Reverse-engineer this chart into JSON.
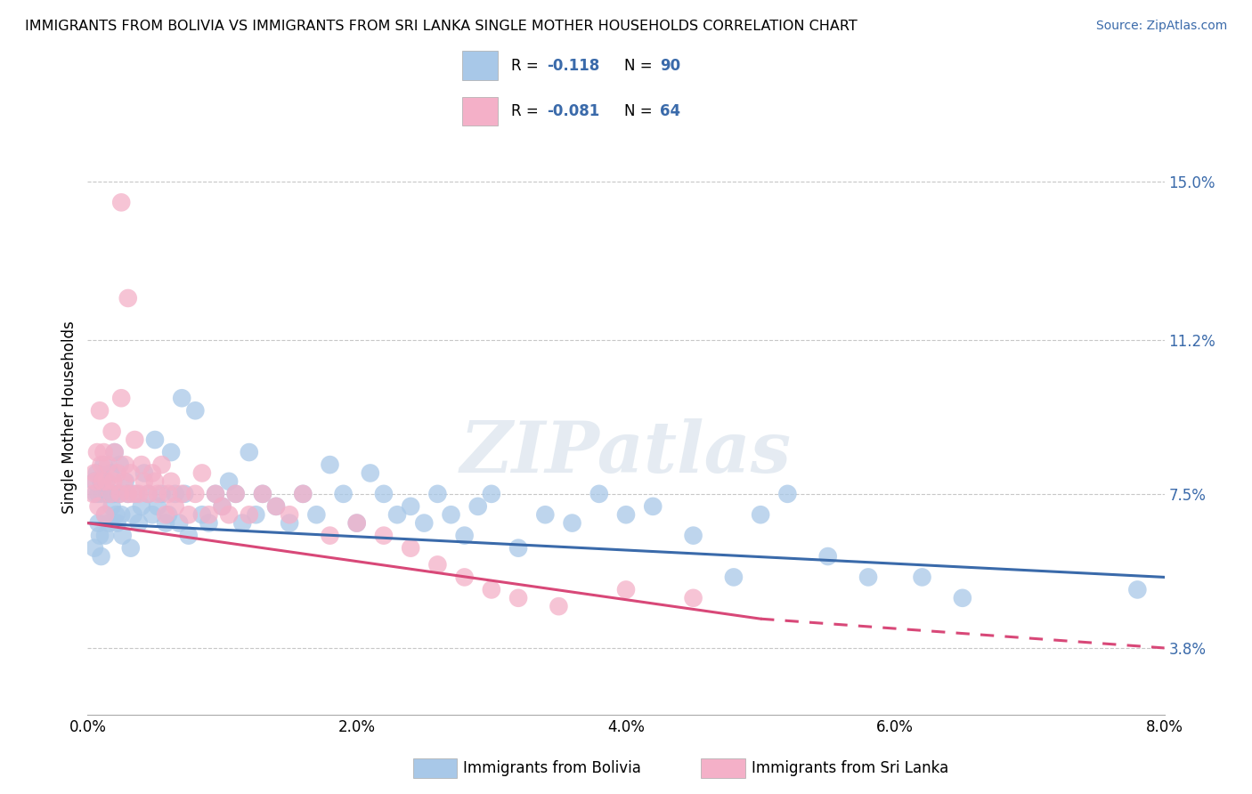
{
  "title": "IMMIGRANTS FROM BOLIVIA VS IMMIGRANTS FROM SRI LANKA SINGLE MOTHER HOUSEHOLDS CORRELATION CHART",
  "source_text": "Source: ZipAtlas.com",
  "ylabel": "Single Mother Households",
  "xlabel_vals": [
    0.0,
    2.0,
    4.0,
    6.0,
    8.0
  ],
  "ylabel_vals": [
    3.8,
    7.5,
    11.2,
    15.0
  ],
  "xlim": [
    0.0,
    8.0
  ],
  "ylim": [
    2.2,
    16.5
  ],
  "bolivia_color": "#a8c8e8",
  "srilanka_color": "#f4b0c8",
  "bolivia_line_color": "#3a6aaa",
  "srilanka_line_color": "#d84878",
  "bolivia_label": "Immigrants from Bolivia",
  "srilanka_label": "Immigrants from Sri Lanka",
  "bolivia_R": "-0.118",
  "bolivia_N": "90",
  "srilanka_R": "-0.081",
  "srilanka_N": "64",
  "watermark": "ZIPatlas",
  "background_color": "#ffffff",
  "grid_color": "#c8c8c8",
  "bolivia_x": [
    0.05,
    0.05,
    0.06,
    0.07,
    0.08,
    0.08,
    0.09,
    0.1,
    0.1,
    0.11,
    0.12,
    0.13,
    0.13,
    0.14,
    0.15,
    0.16,
    0.17,
    0.18,
    0.19,
    0.2,
    0.21,
    0.22,
    0.23,
    0.24,
    0.25,
    0.26,
    0.28,
    0.3,
    0.32,
    0.34,
    0.36,
    0.38,
    0.4,
    0.42,
    0.45,
    0.48,
    0.5,
    0.52,
    0.55,
    0.58,
    0.6,
    0.62,
    0.65,
    0.68,
    0.7,
    0.72,
    0.75,
    0.8,
    0.85,
    0.9,
    0.95,
    1.0,
    1.05,
    1.1,
    1.15,
    1.2,
    1.25,
    1.3,
    1.4,
    1.5,
    1.6,
    1.7,
    1.8,
    1.9,
    2.0,
    2.1,
    2.2,
    2.3,
    2.4,
    2.5,
    2.6,
    2.7,
    2.8,
    2.9,
    3.0,
    3.2,
    3.4,
    3.6,
    3.8,
    4.0,
    4.2,
    4.5,
    4.8,
    5.0,
    5.2,
    5.5,
    5.8,
    6.2,
    6.5,
    7.8
  ],
  "bolivia_y": [
    7.8,
    6.2,
    7.5,
    8.0,
    6.8,
    7.5,
    6.5,
    7.8,
    6.0,
    7.5,
    8.2,
    7.0,
    6.5,
    7.8,
    7.5,
    6.8,
    8.0,
    7.2,
    7.5,
    8.5,
    7.0,
    6.8,
    7.5,
    8.2,
    7.0,
    6.5,
    7.8,
    7.5,
    6.2,
    7.0,
    7.5,
    6.8,
    7.2,
    8.0,
    7.5,
    7.0,
    8.8,
    7.2,
    7.5,
    6.8,
    7.0,
    8.5,
    7.5,
    6.8,
    9.8,
    7.5,
    6.5,
    9.5,
    7.0,
    6.8,
    7.5,
    7.2,
    7.8,
    7.5,
    6.8,
    8.5,
    7.0,
    7.5,
    7.2,
    6.8,
    7.5,
    7.0,
    8.2,
    7.5,
    6.8,
    8.0,
    7.5,
    7.0,
    7.2,
    6.8,
    7.5,
    7.0,
    6.5,
    7.2,
    7.5,
    6.2,
    7.0,
    6.8,
    7.5,
    7.0,
    7.2,
    6.5,
    5.5,
    7.0,
    7.5,
    6.0,
    5.5,
    5.5,
    5.0,
    5.2
  ],
  "srilanka_x": [
    0.04,
    0.05,
    0.06,
    0.07,
    0.08,
    0.09,
    0.1,
    0.11,
    0.12,
    0.13,
    0.14,
    0.15,
    0.17,
    0.18,
    0.19,
    0.2,
    0.22,
    0.24,
    0.25,
    0.27,
    0.28,
    0.3,
    0.32,
    0.34,
    0.35,
    0.38,
    0.4,
    0.42,
    0.45,
    0.48,
    0.5,
    0.52,
    0.55,
    0.58,
    0.6,
    0.62,
    0.65,
    0.7,
    0.75,
    0.8,
    0.85,
    0.9,
    0.95,
    1.0,
    1.05,
    1.1,
    1.2,
    1.3,
    1.4,
    1.5,
    1.6,
    1.8,
    2.0,
    2.2,
    2.4,
    2.6,
    2.8,
    3.0,
    3.2,
    3.5,
    4.0,
    4.5,
    0.25,
    0.3
  ],
  "srilanka_y": [
    7.5,
    8.0,
    7.8,
    8.5,
    7.2,
    9.5,
    8.2,
    7.8,
    8.5,
    7.0,
    7.8,
    8.2,
    7.5,
    9.0,
    7.8,
    8.5,
    8.0,
    7.5,
    9.8,
    7.8,
    8.2,
    7.5,
    8.0,
    7.5,
    8.8,
    7.5,
    8.2,
    7.8,
    7.5,
    8.0,
    7.8,
    7.5,
    8.2,
    7.0,
    7.5,
    7.8,
    7.2,
    7.5,
    7.0,
    7.5,
    8.0,
    7.0,
    7.5,
    7.2,
    7.0,
    7.5,
    7.0,
    7.5,
    7.2,
    7.0,
    7.5,
    6.5,
    6.8,
    6.5,
    6.2,
    5.8,
    5.5,
    5.2,
    5.0,
    4.8,
    5.2,
    5.0,
    14.5,
    12.2
  ]
}
